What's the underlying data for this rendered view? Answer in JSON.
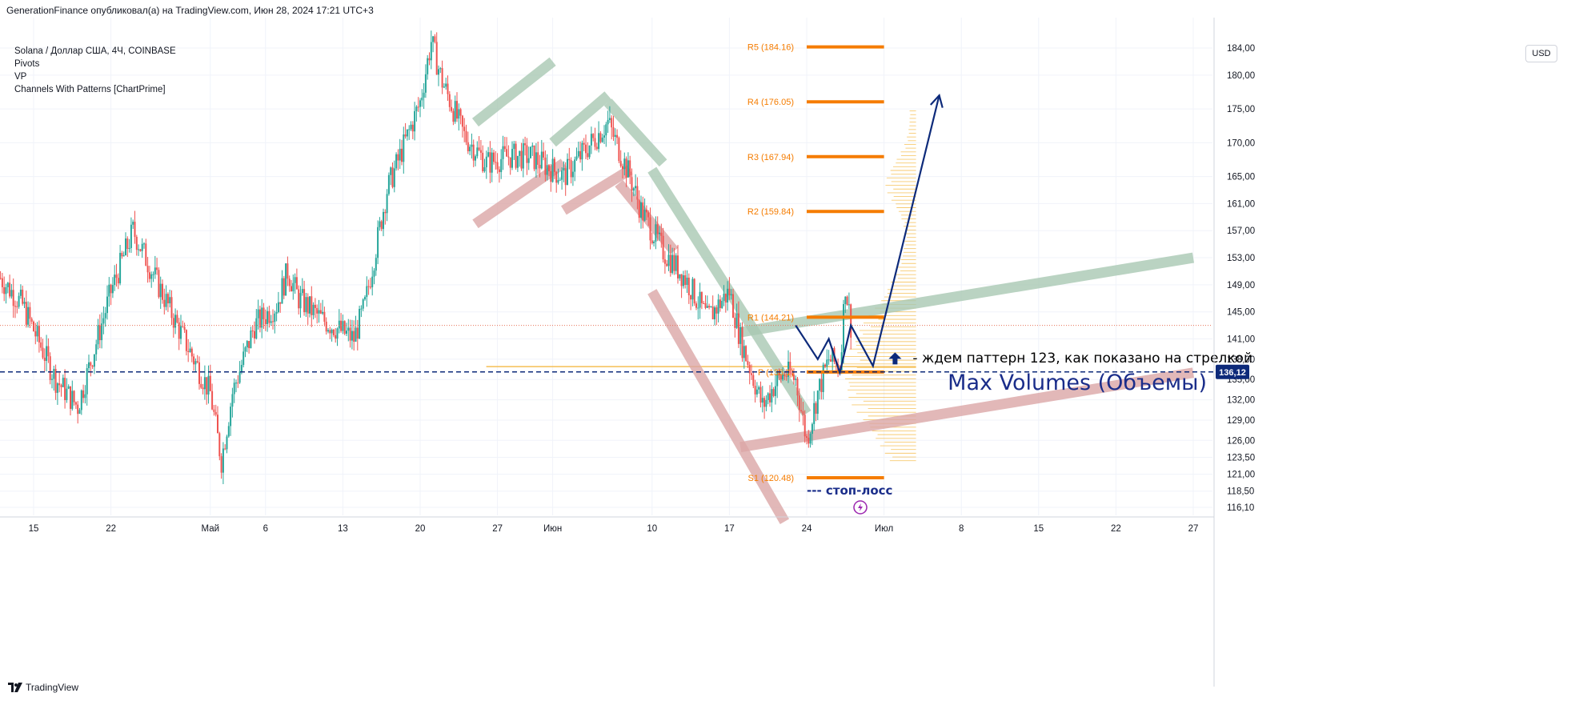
{
  "header": {
    "publisher_line": "GenerationFinance опубликовал(а) на TradingView.com, Июн 28, 2024 17:21 UTC+3"
  },
  "legend": {
    "symbol": "Solana / Доллар США, 4Ч, COINBASE",
    "indicators": [
      "Pivots",
      "VP",
      "Channels With Patterns [ChartPrime]"
    ]
  },
  "currency": "USD",
  "footer": {
    "brand": "TradingView"
  },
  "colors": {
    "up": "#26a69a",
    "down": "#ef5350",
    "pivot": "#f57c00",
    "navy": "#0d2a7a",
    "channel_green": "#a9c9b3",
    "channel_red": "#dca7a7",
    "volume": "#f5b942",
    "price_dotted": "#e8735a"
  },
  "chart_data": {
    "type": "candlestick",
    "symbol": "SOL/USD",
    "timeframe": "4H",
    "y_axis_ticks": [
      "184,00",
      "180,00",
      "175,00",
      "170,00",
      "165,00",
      "161,00",
      "157,00",
      "153,00",
      "149,00",
      "145,00",
      "141,00",
      "138,00",
      "135,00",
      "132,00",
      "129,00",
      "126,00",
      "123,50",
      "121,00",
      "118,50",
      "116,10"
    ],
    "y_tick_values": [
      184,
      180,
      175,
      170,
      165,
      161,
      157,
      153,
      149,
      145,
      141,
      138,
      135,
      132,
      129,
      126,
      123.5,
      121,
      118.5,
      116.1
    ],
    "x_axis_ticks": [
      "15",
      "22",
      "Май",
      "6",
      "13",
      "20",
      "27",
      "Июн",
      "10",
      "17",
      "24",
      "Июл",
      "8",
      "15",
      "22",
      "27"
    ],
    "x_tick_days": [
      0,
      7,
      16,
      21,
      28,
      35,
      42,
      47,
      56,
      63,
      70,
      77,
      84,
      91,
      98,
      105
    ],
    "x_tick_dates": [
      "2024-04-15",
      "2024-04-22",
      "2024-05-01",
      "2024-05-06",
      "2024-05-13",
      "2024-05-20",
      "2024-05-27",
      "2024-06-01",
      "2024-06-10",
      "2024-06-17",
      "2024-06-24",
      "2024-07-01",
      "2024-07-08",
      "2024-07-15",
      "2024-07-22",
      "2024-07-27"
    ],
    "current_price": "136,12",
    "current_price_value": 136.12,
    "pivots": [
      {
        "label": "R5 (184.16)",
        "value": 184.16
      },
      {
        "label": "R4 (176.05)",
        "value": 176.05
      },
      {
        "label": "R3 (167.94)",
        "value": 167.94
      },
      {
        "label": "R2 (159.84)",
        "value": 159.84
      },
      {
        "label": "R1 (144.21)",
        "value": 144.21
      },
      {
        "label": "P (136.1)",
        "value": 136.1
      },
      {
        "label": "S1 (120.48)",
        "value": 120.48
      }
    ],
    "price_anchors": [
      {
        "date": "2024-04-12",
        "price": 150
      },
      {
        "date": "2024-04-14",
        "price": 146
      },
      {
        "date": "2024-04-17",
        "price": 135
      },
      {
        "date": "2024-04-19",
        "price": 131
      },
      {
        "date": "2024-04-22",
        "price": 148
      },
      {
        "date": "2024-04-24",
        "price": 157
      },
      {
        "date": "2024-04-26",
        "price": 150
      },
      {
        "date": "2024-04-28",
        "price": 143
      },
      {
        "date": "2024-05-01",
        "price": 133
      },
      {
        "date": "2024-05-02",
        "price": 123
      },
      {
        "date": "2024-05-03",
        "price": 133
      },
      {
        "date": "2024-05-05",
        "price": 143
      },
      {
        "date": "2024-05-07",
        "price": 146
      },
      {
        "date": "2024-05-08",
        "price": 151
      },
      {
        "date": "2024-05-09",
        "price": 147
      },
      {
        "date": "2024-05-11",
        "price": 144
      },
      {
        "date": "2024-05-14",
        "price": 141
      },
      {
        "date": "2024-05-15",
        "price": 146
      },
      {
        "date": "2024-05-17",
        "price": 163
      },
      {
        "date": "2024-05-20",
        "price": 176
      },
      {
        "date": "2024-05-21",
        "price": 185
      },
      {
        "date": "2024-05-22",
        "price": 179
      },
      {
        "date": "2024-05-24",
        "price": 171
      },
      {
        "date": "2024-05-26",
        "price": 167
      },
      {
        "date": "2024-05-28",
        "price": 168
      },
      {
        "date": "2024-05-30",
        "price": 168
      },
      {
        "date": "2024-06-02",
        "price": 165
      },
      {
        "date": "2024-06-04",
        "price": 169
      },
      {
        "date": "2024-06-06",
        "price": 173
      },
      {
        "date": "2024-06-08",
        "price": 165
      },
      {
        "date": "2024-06-09",
        "price": 160
      },
      {
        "date": "2024-06-11",
        "price": 154
      },
      {
        "date": "2024-06-13",
        "price": 150
      },
      {
        "date": "2024-06-15",
        "price": 144
      },
      {
        "date": "2024-06-17",
        "price": 148
      },
      {
        "date": "2024-06-18",
        "price": 141
      },
      {
        "date": "2024-06-19",
        "price": 136
      },
      {
        "date": "2024-06-20",
        "price": 131
      },
      {
        "date": "2024-06-21",
        "price": 134
      },
      {
        "date": "2024-06-22",
        "price": 136
      },
      {
        "date": "2024-06-23",
        "price": 135
      },
      {
        "date": "2024-06-24",
        "price": 126
      },
      {
        "date": "2024-06-25",
        "price": 133
      },
      {
        "date": "2024-06-26",
        "price": 138
      },
      {
        "date": "2024-06-27",
        "price": 137
      },
      {
        "date": "2024-06-27T12:00",
        "price": 149
      },
      {
        "date": "2024-06-28",
        "price": 143
      }
    ],
    "projection_path": [
      {
        "date": "2024-06-23",
        "price": 143
      },
      {
        "date": "2024-06-25",
        "price": 138
      },
      {
        "date": "2024-06-26",
        "price": 141
      },
      {
        "date": "2024-06-27",
        "price": 136
      },
      {
        "date": "2024-06-28",
        "price": 143
      },
      {
        "date": "2024-06-30",
        "price": 137
      },
      {
        "date": "2024-07-06",
        "price": 177
      }
    ],
    "volume_profile_range": [
      123,
      175
    ],
    "volume_profile_peak": 136,
    "annotations": {
      "max_volumes": "Max Volumes (Объемы)",
      "pattern_note": "- ждем паттерн 123, как показано на стрелкой",
      "stop_loss": "--- стоп-лосс"
    },
    "channels": [
      {
        "color": "green",
        "from": {
          "date": "2024-05-25",
          "price": 173
        },
        "to": {
          "date": "2024-06-01",
          "price": 182
        }
      },
      {
        "color": "red",
        "from": {
          "date": "2024-05-25",
          "price": 158
        },
        "to": {
          "date": "2024-06-02",
          "price": 167
        }
      },
      {
        "color": "green",
        "from": {
          "date": "2024-06-01",
          "price": 170
        },
        "to": {
          "date": "2024-06-06",
          "price": 177
        }
      },
      {
        "color": "green",
        "from": {
          "date": "2024-06-06",
          "price": 176
        },
        "to": {
          "date": "2024-06-11",
          "price": 167
        }
      },
      {
        "color": "red",
        "from": {
          "date": "2024-06-02",
          "price": 160
        },
        "to": {
          "date": "2024-06-08",
          "price": 166
        }
      },
      {
        "color": "red",
        "from": {
          "date": "2024-06-07",
          "price": 164
        },
        "to": {
          "date": "2024-06-12",
          "price": 154
        }
      },
      {
        "color": "green",
        "from": {
          "date": "2024-06-10",
          "price": 166
        },
        "to": {
          "date": "2024-06-24",
          "price": 130
        }
      },
      {
        "color": "red",
        "from": {
          "date": "2024-06-10",
          "price": 148
        },
        "to": {
          "date": "2024-06-22",
          "price": 114
        }
      },
      {
        "color": "green",
        "from": {
          "date": "2024-06-18",
          "price": 142
        },
        "to": {
          "date": "2024-07-29",
          "price": 153
        }
      },
      {
        "color": "red",
        "from": {
          "date": "2024-06-18",
          "price": 125
        },
        "to": {
          "date": "2024-07-29",
          "price": 136
        }
      }
    ]
  }
}
